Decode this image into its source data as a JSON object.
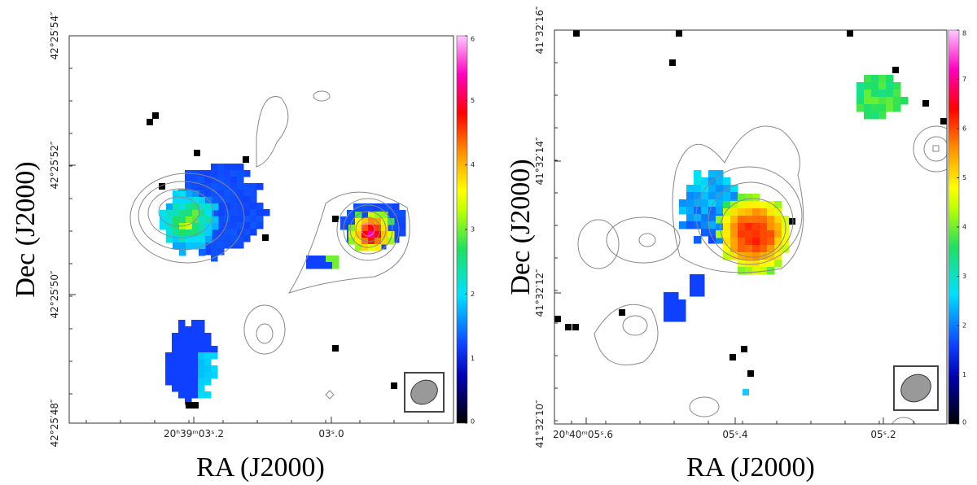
{
  "panels": [
    {
      "x_axis_label": "RA (J2000)",
      "y_axis_label": "Dec (J2000)",
      "x_tick_labels": [
        "20ʰ39ᵐ03ˢ.2",
        "03ˢ.0"
      ],
      "y_tick_labels": [
        "42°25′54″",
        "42°25′52″",
        "42°25′50″",
        "42°25′48″"
      ],
      "colorbar": {
        "range": [
          0,
          6
        ],
        "ticks": [
          0,
          1,
          2,
          3,
          4,
          5,
          6
        ]
      }
    },
    {
      "x_axis_label": "RA (J2000)",
      "y_axis_label": "Dec (J2000)",
      "x_tick_labels": [
        "20ʰ40ᵐ05ˢ.6",
        "05ˢ.4",
        "05ˢ.2"
      ],
      "y_tick_labels": [
        "41°32′16″",
        "41°32′14″",
        "41°32′12″",
        "41°32′10″"
      ],
      "colorbar": {
        "range": [
          0,
          8
        ],
        "ticks": [
          0,
          1,
          2,
          3,
          4,
          5,
          6,
          7,
          8
        ]
      }
    }
  ]
}
